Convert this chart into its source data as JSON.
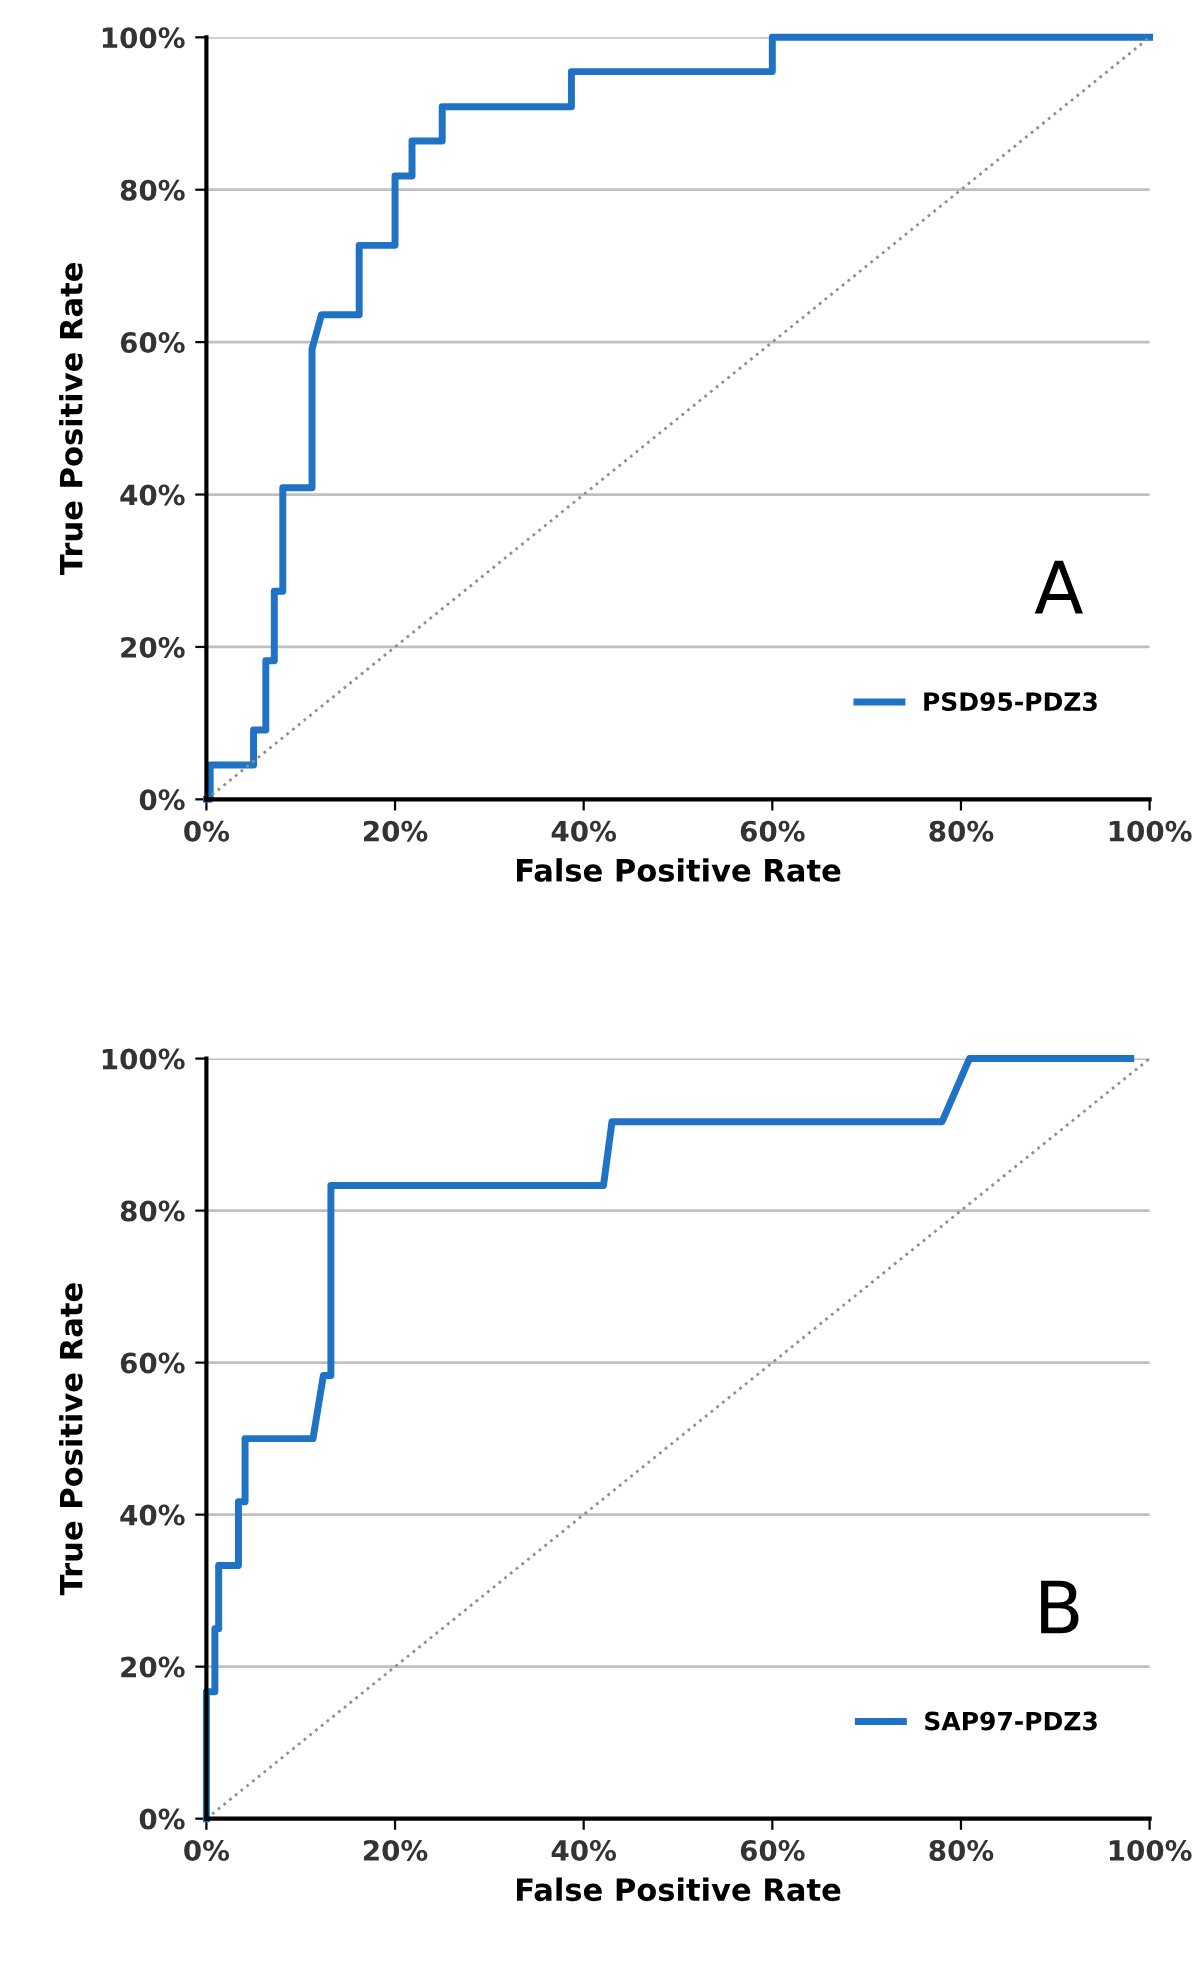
{
  "chart_data": [
    {
      "type": "line",
      "xlabel": "False Positive Rate",
      "ylabel": "True Positive Rate",
      "annotations": [
        "A"
      ],
      "legend": "bottom right",
      "grid": "y",
      "line_style": "solid",
      "marker": "none",
      "xlim": [
        0,
        100
      ],
      "ylim": [
        0,
        100
      ],
      "xticks": [
        {
          "value": 0,
          "label": "0%"
        },
        {
          "value": 20,
          "label": "20%"
        },
        {
          "value": 40,
          "label": "40%"
        },
        {
          "value": 60,
          "label": "60%"
        },
        {
          "value": 80,
          "label": "80%"
        },
        {
          "value": 100,
          "label": "100%"
        }
      ],
      "yticks": [
        {
          "value": 0,
          "label": "0%"
        },
        {
          "value": 20,
          "label": "20%"
        },
        {
          "value": 40,
          "label": "40%"
        },
        {
          "value": 60,
          "label": "60%"
        },
        {
          "value": 80,
          "label": "80%"
        },
        {
          "value": 100,
          "label": "100%"
        }
      ],
      "series": [
        {
          "name": "PSD95-PDZ3",
          "color": "#1f72c4",
          "x": [
            0,
            0.4,
            0.4,
            5.0,
            5.0,
            6.3,
            6.3,
            7.2,
            7.2,
            8.1,
            8.1,
            11.2,
            11.2,
            12.2,
            16.2,
            16.2,
            20.0,
            20.0,
            21.8,
            21.8,
            25.0,
            25.0,
            38.7,
            38.7,
            60.0,
            60.0,
            100
          ],
          "values": [
            0,
            0,
            4.5,
            4.5,
            9.1,
            9.1,
            18.2,
            18.2,
            27.3,
            27.3,
            40.9,
            40.9,
            59.1,
            63.6,
            63.6,
            72.7,
            72.7,
            81.8,
            81.8,
            86.4,
            86.4,
            90.9,
            90.9,
            95.5,
            95.5,
            100,
            100
          ]
        },
        {
          "color": "#909090",
          "line_style": "dotted",
          "x": [
            0,
            100
          ],
          "values": [
            0,
            100
          ]
        }
      ]
    },
    {
      "type": "line",
      "xlabel": "False Positive Rate",
      "ylabel": "True Positive Rate",
      "annotations": [
        "B"
      ],
      "legend": "bottom right",
      "grid": "y",
      "line_style": "solid",
      "marker": "none",
      "xlim": [
        0,
        100
      ],
      "ylim": [
        0,
        100
      ],
      "xticks": [
        {
          "value": 0,
          "label": "0%"
        },
        {
          "value": 20,
          "label": "20%"
        },
        {
          "value": 40,
          "label": "40%"
        },
        {
          "value": 60,
          "label": "60%"
        },
        {
          "value": 80,
          "label": "80%"
        },
        {
          "value": 100,
          "label": "100%"
        }
      ],
      "yticks": [
        {
          "value": 0,
          "label": "0%"
        },
        {
          "value": 20,
          "label": "20%"
        },
        {
          "value": 40,
          "label": "40%"
        },
        {
          "value": 60,
          "label": "60%"
        },
        {
          "value": 80,
          "label": "80%"
        },
        {
          "value": 100,
          "label": "100%"
        }
      ],
      "series": [
        {
          "name": "SAP97-PDZ3",
          "color": "#1f72c4",
          "x": [
            0,
            0,
            0.9,
            0.9,
            1.3,
            1.3,
            3.4,
            3.4,
            4.1,
            4.1,
            11.3,
            12.4,
            13.2,
            13.2,
            42.1,
            43.0,
            78.0,
            80.9,
            98.0
          ],
          "values": [
            0,
            16.7,
            16.7,
            25.0,
            25.0,
            33.3,
            33.3,
            41.7,
            41.7,
            50.0,
            50.0,
            58.3,
            58.3,
            83.3,
            83.3,
            91.7,
            91.7,
            100,
            100
          ]
        },
        {
          "color": "#909090",
          "line_style": "dotted",
          "x": [
            0,
            100
          ],
          "values": [
            0,
            100
          ]
        }
      ]
    }
  ]
}
